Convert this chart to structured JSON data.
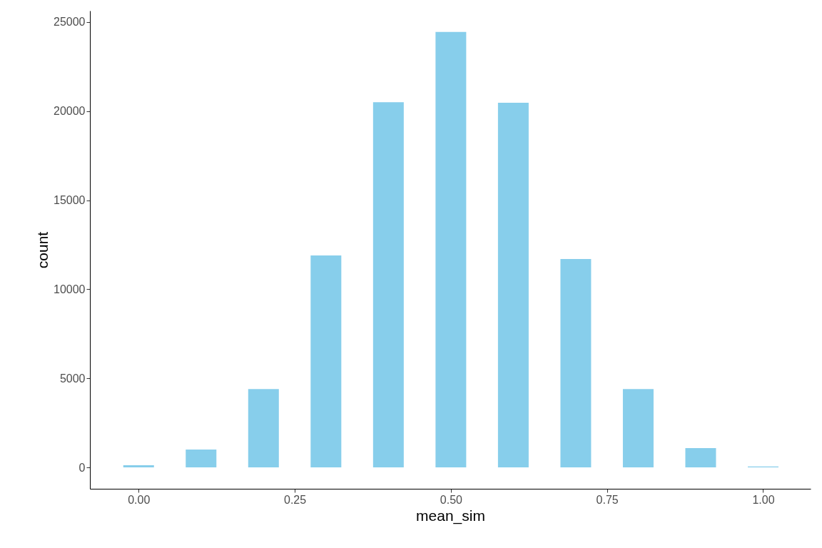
{
  "chart_data": {
    "type": "bar",
    "xlabel": "mean_sim",
    "ylabel": "count",
    "x": [
      0.0,
      0.1,
      0.2,
      0.3,
      0.4,
      0.5,
      0.6,
      0.7,
      0.8,
      0.9,
      1.0
    ],
    "values": [
      120,
      1000,
      4400,
      11900,
      20500,
      24450,
      20470,
      11700,
      4400,
      1080,
      50
    ],
    "color": "#87ceeb",
    "xlim": [
      -0.078,
      1.076
    ],
    "xticks": [
      {
        "value": 0,
        "label": "0.00"
      },
      {
        "value": 0.25,
        "label": "0.25"
      },
      {
        "value": 0.5,
        "label": "0.50"
      },
      {
        "value": 0.75,
        "label": "0.75"
      },
      {
        "value": 1.0,
        "label": "1.00"
      }
    ],
    "ylim": [
      -1200,
      25640
    ],
    "yticks": [
      0,
      5000,
      10000,
      15000,
      20000,
      25000
    ],
    "grid": false
  }
}
